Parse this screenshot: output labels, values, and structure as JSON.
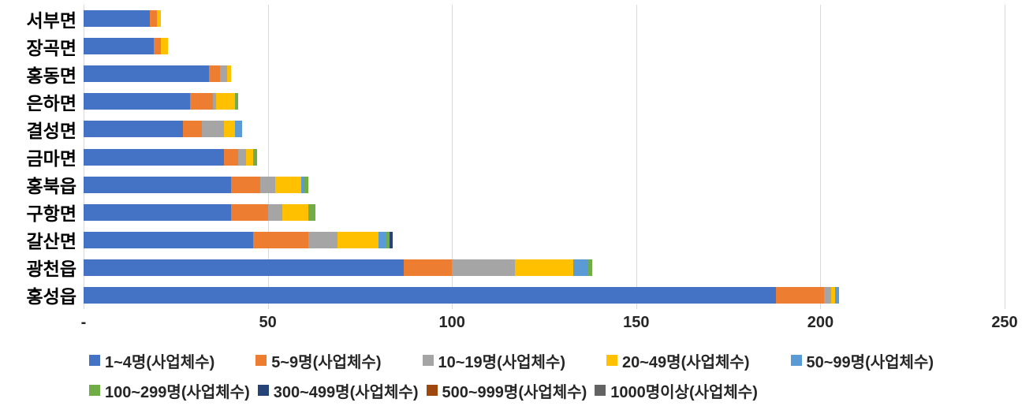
{
  "chart_data": {
    "type": "bar",
    "orientation": "horizontal",
    "stacked": true,
    "title": "",
    "xlabel": "",
    "ylabel": "",
    "grid": "vertical",
    "legend_position": "bottom",
    "xlim": [
      0,
      250
    ],
    "x_ticks": {
      "values": [
        0,
        50,
        100,
        150,
        200,
        250
      ],
      "labels": [
        "-",
        "50",
        "100",
        "150",
        "200",
        "250"
      ]
    },
    "categories": [
      "서부면",
      "장곡면",
      "홍동면",
      "은하면",
      "결성면",
      "금마면",
      "홍북읍",
      "구항면",
      "갈산면",
      "광천읍",
      "홍성읍"
    ],
    "series": [
      {
        "name": "1~4명(사업체수)",
        "color": "#4472C4",
        "values": [
          18,
          19,
          34,
          29,
          27,
          38,
          40,
          40,
          46,
          87,
          188
        ]
      },
      {
        "name": "5~9명(사업체수)",
        "color": "#ED7D31",
        "values": [
          2,
          2,
          3,
          6,
          5,
          4,
          8,
          10,
          15,
          13,
          13
        ]
      },
      {
        "name": "10~19명(사업체수)",
        "color": "#A5A5A5",
        "values": [
          0,
          0,
          2,
          1,
          6,
          2,
          4,
          4,
          8,
          17,
          2
        ]
      },
      {
        "name": "20~49명(사업체수)",
        "color": "#FFC000",
        "values": [
          1,
          2,
          1,
          5,
          3,
          2,
          7,
          7,
          11,
          16,
          1
        ]
      },
      {
        "name": "50~99명(사업체수)",
        "color": "#5B9BD5",
        "values": [
          0,
          0,
          0,
          0,
          2,
          0,
          1,
          0,
          2,
          4,
          1
        ]
      },
      {
        "name": "100~299명(사업체수)",
        "color": "#70AD47",
        "values": [
          0,
          0,
          0,
          1,
          0,
          1,
          1,
          2,
          1,
          1,
          0
        ]
      },
      {
        "name": "300~499명(사업체수)",
        "color": "#264478",
        "values": [
          0,
          0,
          0,
          0,
          0,
          0,
          0,
          0,
          1,
          0,
          0
        ]
      },
      {
        "name": "500~999명(사업체수)",
        "color": "#9E480E",
        "values": [
          0,
          0,
          0,
          0,
          0,
          0,
          0,
          0,
          0,
          0,
          0
        ]
      },
      {
        "name": "1000명이상(사업체수)",
        "color": "#636363",
        "values": [
          0,
          0,
          0,
          0,
          0,
          0,
          0,
          0,
          0,
          0,
          0
        ]
      }
    ],
    "legend_rows": [
      [
        0,
        1,
        2,
        3,
        4
      ],
      [
        5,
        6,
        7,
        8
      ]
    ]
  }
}
